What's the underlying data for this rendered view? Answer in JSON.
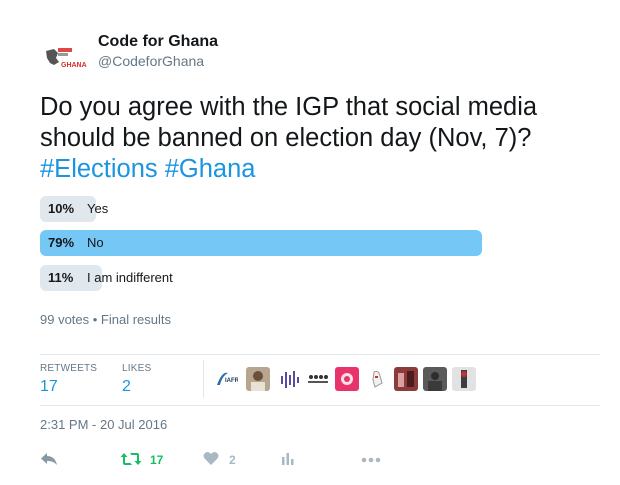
{
  "author": {
    "name": "Code for Ghana",
    "handle": "@CodeforGhana",
    "logo_text": "GHANA"
  },
  "tweet": {
    "text_line1": "Do you agree with the IGP that social media",
    "text_line2": "should be banned on election day (Nov, 7)?",
    "hashtags": "#Elections #Ghana"
  },
  "poll": {
    "options": [
      {
        "percent_label": "10%",
        "label": "Yes",
        "fraction": 0.1,
        "winner": false
      },
      {
        "percent_label": "79%",
        "label": "No",
        "fraction": 0.79,
        "winner": true
      },
      {
        "percent_label": "11%",
        "label": "I am indifferent",
        "fraction": 0.11,
        "winner": false
      }
    ],
    "meta": "99 votes • Final results"
  },
  "stats": {
    "retweets_label": "RETWEETS",
    "retweets_value": "17",
    "likes_label": "LIKES",
    "likes_value": "2"
  },
  "timestamp": "2:31 PM - 20 Jul 2016",
  "actions": {
    "retweet_count": "17",
    "like_count": "2"
  },
  "colors": {
    "hashtag": "#1b95e0",
    "winner_bar": "#75c7f5",
    "other_bar": "#e1e8ed",
    "retweet_green": "#17bf63",
    "muted": "#657786"
  },
  "icons": {
    "reply": "reply-icon",
    "retweet": "retweet-icon",
    "like": "heart-icon",
    "analytics": "analytics-icon",
    "more": "more-icon"
  }
}
